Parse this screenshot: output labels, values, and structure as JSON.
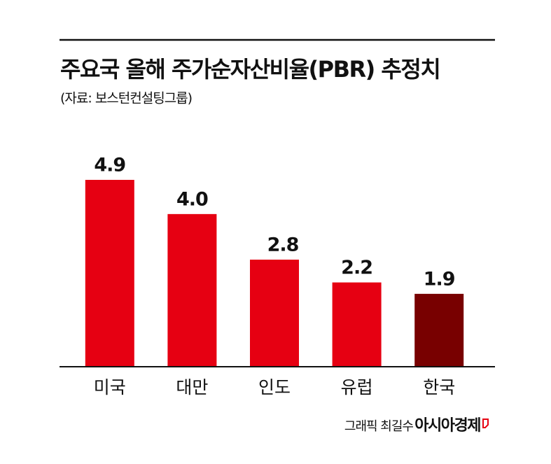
{
  "chart_data": {
    "type": "bar",
    "title": "주요국 올해 주가순자산비율(PBR) 추정치",
    "subtitle": "(자료: 보스턴컨설팅그룹)",
    "categories": [
      "미국",
      "대만",
      "인도",
      "유럽",
      "한국"
    ],
    "values": [
      4.9,
      4.0,
      2.8,
      2.2,
      1.9
    ],
    "value_labels": [
      "4.9",
      "4.0",
      "2.8",
      "2.2",
      "1.9"
    ],
    "colors": [
      "#e60012",
      "#e60012",
      "#e60012",
      "#e60012",
      "#780000"
    ],
    "credit": "그래픽 최길수",
    "publisher": "아시아경제"
  }
}
